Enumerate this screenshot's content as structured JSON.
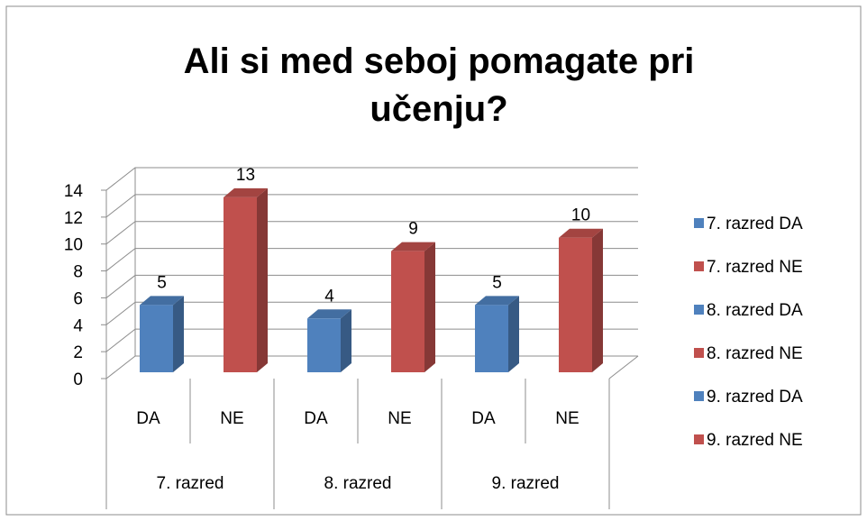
{
  "chart_data": {
    "type": "bar",
    "title": "Ali si med seboj pomagate pri učenju?",
    "categories": [
      "DA",
      "NE",
      "DA",
      "NE",
      "DA",
      "NE"
    ],
    "groups": [
      "7. razred",
      "8. razred",
      "9. razred"
    ],
    "series": [
      {
        "name": "7. razred DA",
        "color": "#4f81bd",
        "values": [
          5,
          null,
          null,
          null,
          null,
          null
        ]
      },
      {
        "name": "7. razred NE",
        "color": "#c0504d",
        "values": [
          null,
          13,
          null,
          null,
          null,
          null
        ]
      },
      {
        "name": "8. razred DA",
        "color": "#4f81bd",
        "values": [
          null,
          null,
          4,
          null,
          null,
          null
        ]
      },
      {
        "name": "8. razred NE",
        "color": "#c0504d",
        "values": [
          null,
          null,
          null,
          9,
          null,
          null
        ]
      },
      {
        "name": "9. razred DA",
        "color": "#4f81bd",
        "values": [
          null,
          null,
          null,
          null,
          5,
          null
        ]
      },
      {
        "name": "9. razred NE",
        "color": "#c0504d",
        "values": [
          null,
          null,
          null,
          null,
          null,
          10
        ]
      }
    ],
    "ylim": [
      0,
      14
    ],
    "yticks": [
      0,
      2,
      4,
      6,
      8,
      10,
      12,
      14
    ],
    "grid": true,
    "legend": "right"
  }
}
